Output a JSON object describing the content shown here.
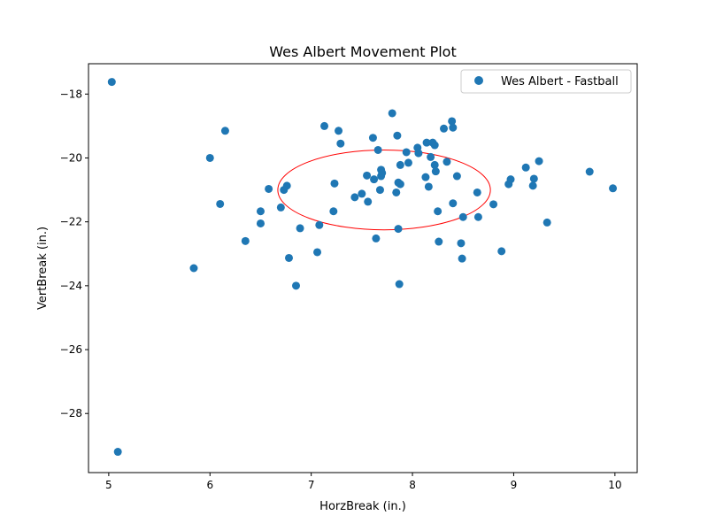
{
  "chart_data": {
    "type": "scatter",
    "title": "Wes Albert Movement Plot",
    "xlabel": "HorzBreak (in.)",
    "ylabel": "VertBreak (in.)",
    "xlim": [
      4.8,
      10.22
    ],
    "ylim": [
      -29.85,
      -17.05
    ],
    "xticks": [
      5,
      6,
      7,
      8,
      9,
      10
    ],
    "yticks": [
      -28,
      -26,
      -24,
      -22,
      -20,
      -18
    ],
    "grid": false,
    "legend": "top-right",
    "series": [
      {
        "name": "Wes Albert - Fastball",
        "color": "#1f77b4",
        "points": [
          [
            5.03,
            -17.62
          ],
          [
            5.09,
            -29.2
          ],
          [
            5.84,
            -23.45
          ],
          [
            6.0,
            -20.0
          ],
          [
            6.1,
            -21.44
          ],
          [
            6.15,
            -19.15
          ],
          [
            6.35,
            -22.6
          ],
          [
            6.5,
            -21.67
          ],
          [
            6.5,
            -22.05
          ],
          [
            6.58,
            -20.97
          ],
          [
            6.7,
            -21.55
          ],
          [
            6.73,
            -21.0
          ],
          [
            6.76,
            -20.87
          ],
          [
            6.78,
            -23.13
          ],
          [
            6.85,
            -24.0
          ],
          [
            6.89,
            -22.2
          ],
          [
            7.06,
            -22.95
          ],
          [
            7.08,
            -22.1
          ],
          [
            7.13,
            -19.0
          ],
          [
            7.22,
            -21.67
          ],
          [
            7.23,
            -20.8
          ],
          [
            7.27,
            -19.15
          ],
          [
            7.29,
            -19.55
          ],
          [
            7.43,
            -21.23
          ],
          [
            7.5,
            -21.12
          ],
          [
            7.55,
            -20.55
          ],
          [
            7.56,
            -21.37
          ],
          [
            7.61,
            -19.37
          ],
          [
            7.62,
            -20.67
          ],
          [
            7.64,
            -22.52
          ],
          [
            7.66,
            -19.75
          ],
          [
            7.68,
            -21.0
          ],
          [
            7.69,
            -20.57
          ],
          [
            7.69,
            -20.37
          ],
          [
            7.7,
            -20.47
          ],
          [
            7.8,
            -18.6
          ],
          [
            7.84,
            -21.08
          ],
          [
            7.85,
            -19.3
          ],
          [
            7.86,
            -20.77
          ],
          [
            7.86,
            -22.22
          ],
          [
            7.87,
            -23.95
          ],
          [
            7.88,
            -20.82
          ],
          [
            7.88,
            -20.22
          ],
          [
            7.94,
            -19.82
          ],
          [
            7.96,
            -20.15
          ],
          [
            8.05,
            -19.68
          ],
          [
            8.06,
            -19.85
          ],
          [
            8.13,
            -20.6
          ],
          [
            8.14,
            -19.52
          ],
          [
            8.16,
            -20.9
          ],
          [
            8.18,
            -19.97
          ],
          [
            8.2,
            -19.52
          ],
          [
            8.22,
            -20.22
          ],
          [
            8.22,
            -19.6
          ],
          [
            8.23,
            -20.42
          ],
          [
            8.25,
            -21.67
          ],
          [
            8.26,
            -22.62
          ],
          [
            8.31,
            -19.08
          ],
          [
            8.34,
            -20.12
          ],
          [
            8.39,
            -18.85
          ],
          [
            8.4,
            -19.05
          ],
          [
            8.4,
            -21.42
          ],
          [
            8.44,
            -20.57
          ],
          [
            8.48,
            -22.67
          ],
          [
            8.49,
            -23.15
          ],
          [
            8.5,
            -21.85
          ],
          [
            8.64,
            -21.08
          ],
          [
            8.65,
            -21.85
          ],
          [
            8.8,
            -21.45
          ],
          [
            8.88,
            -22.92
          ],
          [
            8.95,
            -20.82
          ],
          [
            8.97,
            -20.67
          ],
          [
            9.12,
            -20.3
          ],
          [
            9.19,
            -20.87
          ],
          [
            9.2,
            -20.65
          ],
          [
            9.25,
            -20.1
          ],
          [
            9.33,
            -22.02
          ],
          [
            9.75,
            -20.43
          ],
          [
            9.98,
            -20.95
          ]
        ]
      }
    ],
    "ellipse": {
      "color": "#ff0000",
      "center": [
        7.72,
        -21.0
      ],
      "x_radius": 1.05,
      "y_radius": 1.25
    }
  }
}
